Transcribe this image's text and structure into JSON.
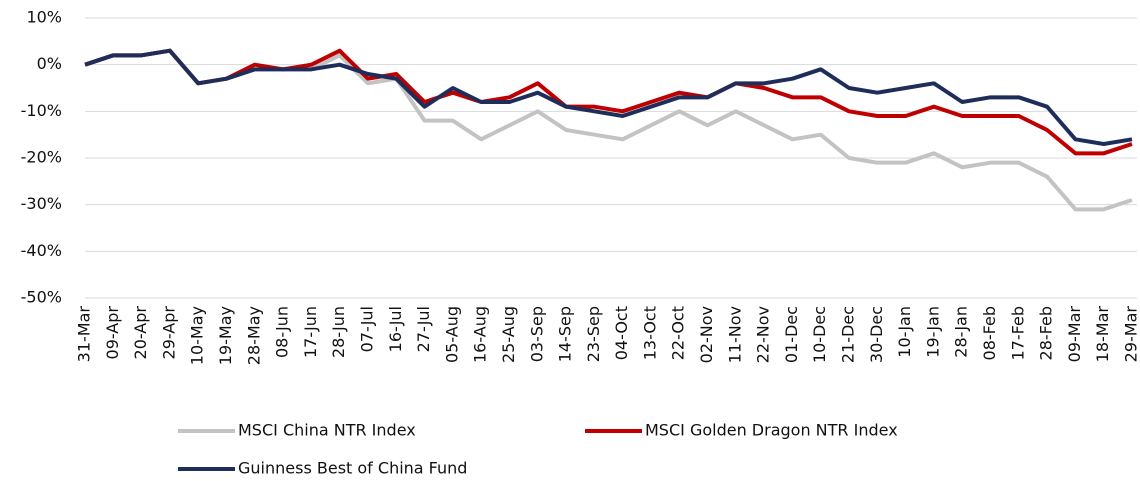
{
  "chart_data": {
    "type": "line",
    "categories": [
      "31-Mar",
      "09-Apr",
      "20-Apr",
      "29-Apr",
      "10-May",
      "19-May",
      "28-May",
      "08-Jun",
      "17-Jun",
      "28-Jun",
      "07-Jul",
      "16-Jul",
      "27-Jul",
      "05-Aug",
      "16-Aug",
      "25-Aug",
      "03-Sep",
      "14-Sep",
      "23-Sep",
      "04-Oct",
      "13-Oct",
      "22-Oct",
      "02-Nov",
      "11-Nov",
      "22-Nov",
      "01-Dec",
      "10-Dec",
      "21-Dec",
      "30-Dec",
      "10-Jan",
      "19-Jan",
      "28-Jan",
      "08-Feb",
      "17-Feb",
      "28-Feb",
      "09-Mar",
      "18-Mar",
      "29-Mar"
    ],
    "series": [
      {
        "name": "MSCI China NTR Index",
        "color": "#c3c3c3",
        "values": [
          0,
          2,
          2,
          3,
          -4,
          -3,
          -1,
          -1,
          -1,
          2,
          -4,
          -3,
          -12,
          -12,
          -16,
          -13,
          -10,
          -14,
          -15,
          -16,
          -13,
          -10,
          -13,
          -10,
          -13,
          -16,
          -15,
          -20,
          -21,
          -21,
          -19,
          -22,
          -21,
          -21,
          -24,
          -31,
          -31,
          -29
        ]
      },
      {
        "name": "MSCI Golden Dragon NTR Index",
        "color": "#c00000",
        "values": [
          0,
          2,
          2,
          3,
          -4,
          -3,
          0,
          -1,
          0,
          3,
          -3,
          -2,
          -8,
          -6,
          -8,
          -7,
          -4,
          -9,
          -9,
          -10,
          -8,
          -6,
          -7,
          -4,
          -5,
          -7,
          -7,
          -10,
          -11,
          -11,
          -9,
          -11,
          -11,
          -11,
          -14,
          -19,
          -19,
          -17
        ]
      },
      {
        "name": "Guinness Best of China Fund",
        "color": "#1f2d5a",
        "values": [
          0,
          2,
          2,
          3,
          -4,
          -3,
          -1,
          -1,
          -1,
          0,
          -2,
          -3,
          -9,
          -5,
          -8,
          -8,
          -6,
          -9,
          -10,
          -11,
          -9,
          -7,
          -7,
          -4,
          -4,
          -3,
          -1,
          -5,
          -6,
          -5,
          -4,
          -8,
          -7,
          -7,
          -9,
          -16,
          -17,
          -16
        ]
      }
    ],
    "ylim": [
      -50,
      10
    ],
    "yticks": [
      {
        "value": -50,
        "label": "-50%"
      },
      {
        "value": -40,
        "label": "-40%"
      },
      {
        "value": -30,
        "label": "-30%"
      },
      {
        "value": -20,
        "label": "-20%"
      },
      {
        "value": -10,
        "label": "-10%"
      },
      {
        "value": 0,
        "label": "0%"
      },
      {
        "value": 10,
        "label": "10%"
      }
    ],
    "grid": true
  }
}
